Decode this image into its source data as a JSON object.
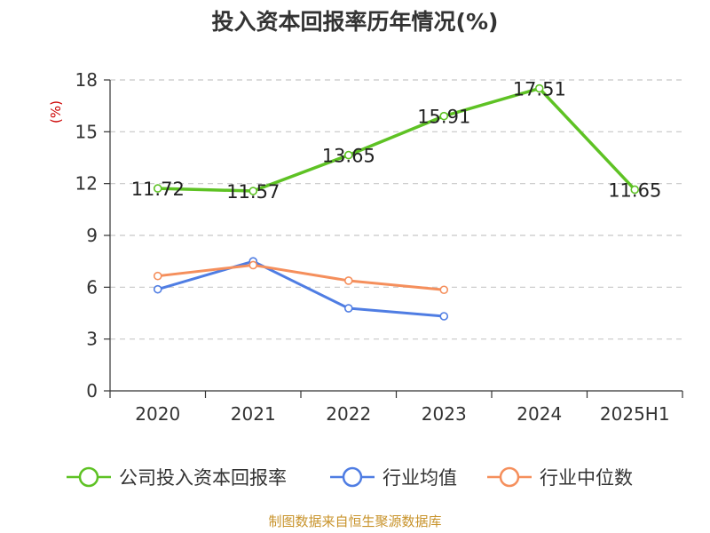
{
  "title": "投入资本回报率历年情况(%)",
  "source": "制图数据来自恒生聚源数据库",
  "colors": {
    "company": "#5ec224",
    "industry_avg": "#4f7de3",
    "industry_median": "#f58f5c",
    "unit": "#cc0000",
    "source": "#c8932b",
    "grid": "#c8c8c8",
    "axis": "#333333"
  },
  "chart_data": {
    "type": "line",
    "title": "投入资本回报率历年情况(%)",
    "ylabel": "(%)",
    "xlabel": "",
    "categories": [
      "2020",
      "2021",
      "2022",
      "2023",
      "2024",
      "2025H1"
    ],
    "ylim": [
      0,
      18
    ],
    "yticks": [
      0,
      3,
      6,
      9,
      12,
      15,
      18
    ],
    "grid": "horizontal-dashed",
    "legend_position": "bottom",
    "series": [
      {
        "name": "公司投入资本回报率",
        "color_key": "company",
        "values": [
          11.72,
          11.57,
          13.65,
          15.91,
          17.51,
          11.65
        ],
        "labels": [
          "11.72",
          "11.57",
          "13.65",
          "15.91",
          "17.51",
          "11.65"
        ]
      },
      {
        "name": "行业均值",
        "color_key": "industry_avg",
        "values": [
          5.88,
          7.5,
          4.78,
          4.32,
          null,
          null
        ]
      },
      {
        "name": "行业中位数",
        "color_key": "industry_median",
        "values": [
          6.65,
          7.28,
          6.38,
          5.85,
          null,
          null
        ]
      }
    ]
  }
}
